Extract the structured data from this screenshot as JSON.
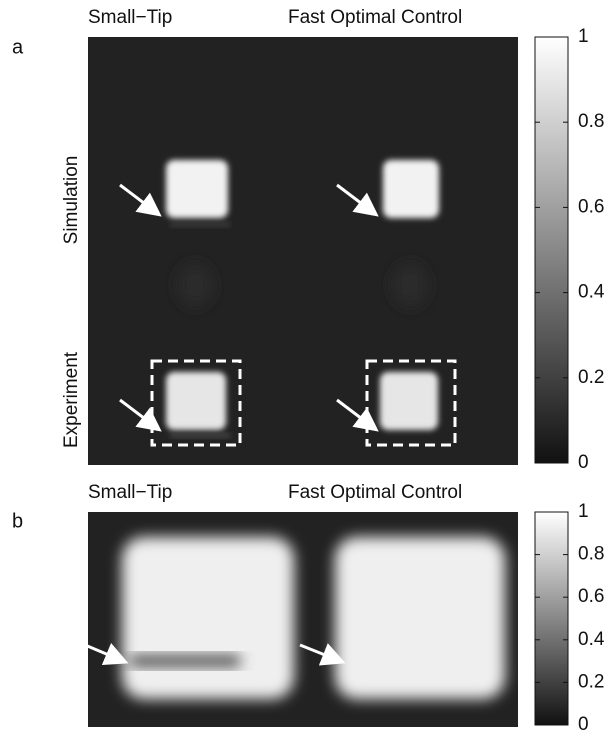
{
  "panels": [
    {
      "label": "a",
      "column_titles": [
        "Small−Tip",
        "Fast Optimal Control"
      ],
      "row_labels": [
        "Simulation",
        "Experiment"
      ],
      "colorbar": {
        "lim": [
          0,
          1
        ],
        "ticks": [
          0,
          0.2,
          0.4,
          0.6,
          0.8,
          1
        ]
      }
    },
    {
      "label": "b",
      "column_titles": [
        "Small−Tip",
        "Fast Optimal Control"
      ],
      "colorbar": {
        "lim": [
          0,
          1
        ],
        "ticks": [
          0,
          0.2,
          0.4,
          0.6,
          0.8,
          1
        ]
      }
    }
  ]
}
